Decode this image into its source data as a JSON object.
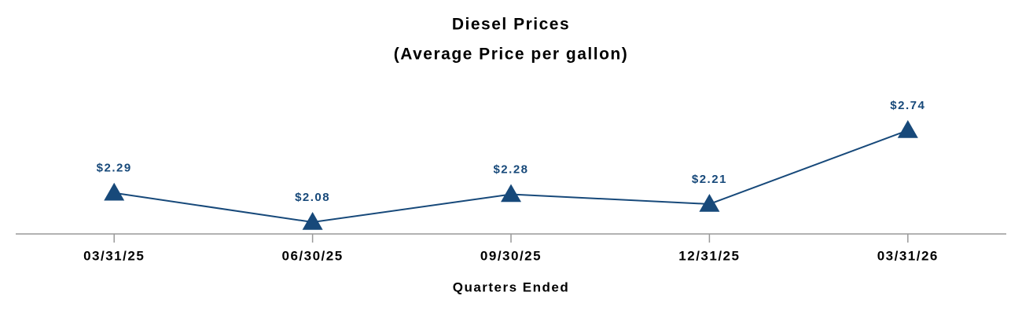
{
  "chart_data": {
    "type": "line",
    "title": "Diesel Prices",
    "subtitle": "(Average Price per gallon)",
    "x_label": "Quarters Ended",
    "categories": [
      "03/31/25",
      "06/30/25",
      "09/30/25",
      "12/31/25",
      "03/31/26"
    ],
    "values": [
      2.29,
      2.08,
      2.28,
      2.21,
      2.74
    ],
    "value_labels": [
      "$2.29",
      "$2.08",
      "$2.28",
      "$2.21",
      "$2.74"
    ],
    "color": "#17497a",
    "marker": "triangle"
  }
}
